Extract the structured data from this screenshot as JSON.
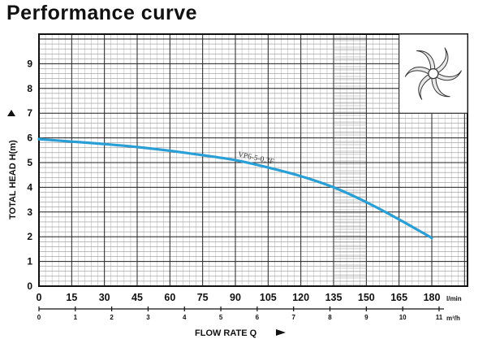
{
  "title": "Performance curve",
  "chart_data": {
    "type": "line",
    "title": "Performance curve",
    "ylabel": "TOTAL HEAD H(m)",
    "xlabel": "FLOW RATE Q",
    "x_unit": "l/min",
    "x2_unit": "m³/h",
    "xlim": [
      0,
      180
    ],
    "ylim": [
      0,
      10
    ],
    "x_ticks": [
      "0",
      "15",
      "30",
      "45",
      "60",
      "75",
      "90",
      "105",
      "120",
      "135",
      "150",
      "165",
      "180"
    ],
    "x2_ticks": [
      "0",
      "1",
      "2",
      "3",
      "4",
      "5",
      "6",
      "7",
      "8",
      "9",
      "10",
      "11"
    ],
    "y_ticks": [
      "0",
      "1",
      "2",
      "3",
      "4",
      "5",
      "6",
      "7",
      "8",
      "9"
    ],
    "grid": true,
    "series": [
      {
        "name": "VP6-5-0.3F",
        "color": "#2a9fd6",
        "x": [
          0,
          15,
          30,
          45,
          60,
          75,
          90,
          105,
          120,
          135,
          150,
          165,
          180
        ],
        "y": [
          5.95,
          5.85,
          5.75,
          5.63,
          5.48,
          5.3,
          5.1,
          4.8,
          4.45,
          4.0,
          3.4,
          2.7,
          1.95
        ]
      }
    ],
    "inset": "impeller-icon"
  }
}
